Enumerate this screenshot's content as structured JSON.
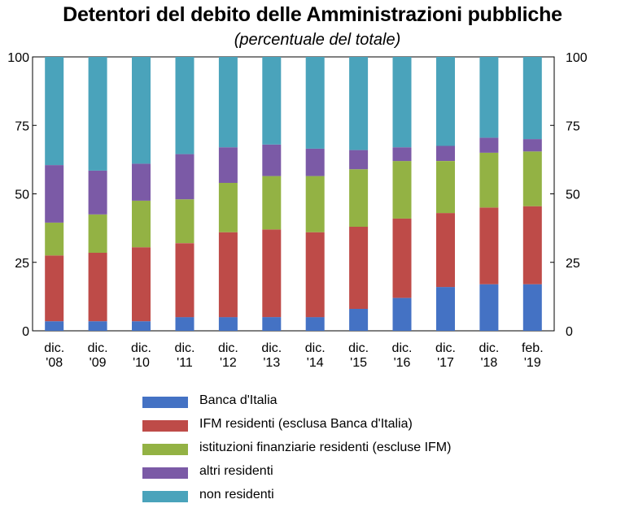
{
  "chart_data": {
    "type": "bar",
    "stacked": true,
    "title": "Detentori del debito delle Amministrazioni pubbliche",
    "subtitle": "(percentuale del totale)",
    "categories": [
      [
        "dic.",
        "'08"
      ],
      [
        "dic.",
        "'09"
      ],
      [
        "dic.",
        "'10"
      ],
      [
        "dic.",
        "'11"
      ],
      [
        "dic.",
        "'12"
      ],
      [
        "dic.",
        "'13"
      ],
      [
        "dic.",
        "'14"
      ],
      [
        "dic.",
        "'15"
      ],
      [
        "dic.",
        "'16"
      ],
      [
        "dic.",
        "'17"
      ],
      [
        "dic.",
        "'18"
      ],
      [
        "feb.",
        "'19"
      ]
    ],
    "ylim": [
      0,
      100
    ],
    "yticks": [
      0,
      25,
      50,
      75,
      100
    ],
    "left_axis_ticks": [
      "0",
      "25",
      "50",
      "75",
      "100"
    ],
    "right_axis_ticks": [
      "0",
      "25",
      "50",
      "75",
      "100"
    ],
    "legend_position": "bottom",
    "series": [
      {
        "name": "Banca d'Italia",
        "color": "#4472c4",
        "values": [
          3.5,
          3.5,
          3.5,
          5,
          5,
          5,
          5,
          8,
          12,
          16,
          17,
          17
        ]
      },
      {
        "name": "IFM residenti (esclusa Banca d'Italia)",
        "color": "#be4b48",
        "values": [
          24,
          25,
          27,
          27,
          31,
          32,
          31,
          30,
          29,
          27,
          28,
          28.5
        ]
      },
      {
        "name": "istituzioni finanziarie residenti (escluse IFM)",
        "color": "#93b244",
        "values": [
          12,
          14,
          17,
          16,
          18,
          19.5,
          20.5,
          21,
          21,
          19,
          20,
          20
        ]
      },
      {
        "name": "altri residenti",
        "color": "#7b5aa6",
        "values": [
          21,
          16,
          13.5,
          16.5,
          13,
          11.5,
          10,
          7,
          5,
          5.5,
          5.5,
          4.5
        ]
      },
      {
        "name": "non residenti",
        "color": "#4aa3bb",
        "values": [
          39.5,
          41.5,
          39,
          35.5,
          33,
          32,
          33.5,
          34,
          33,
          32.5,
          29.5,
          30
        ]
      }
    ]
  }
}
